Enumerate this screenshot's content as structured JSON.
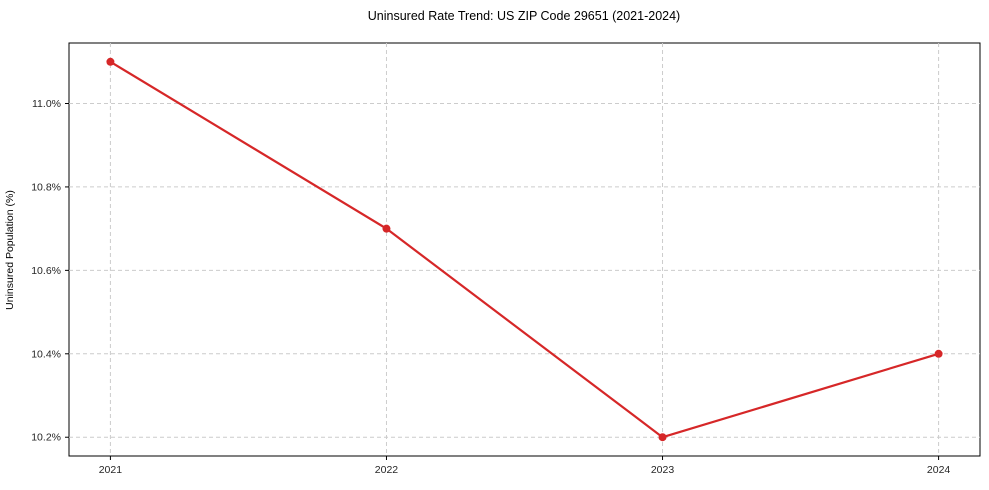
{
  "chart_data": {
    "type": "line",
    "title": "Uninsured Rate Trend: US ZIP Code 29651 (2021-2024)",
    "xlabel": "",
    "ylabel": "Uninsured Population (%)",
    "x": [
      2021,
      2022,
      2023,
      2024
    ],
    "x_tick_labels": [
      "2021",
      "2022",
      "2023",
      "2024"
    ],
    "series": [
      {
        "name": "Uninsured rate",
        "values": [
          11.1,
          10.7,
          10.2,
          10.4
        ],
        "color": "#d62728",
        "marker": "circle"
      }
    ],
    "y_ticks": [
      10.2,
      10.4,
      10.6,
      10.8,
      11.0
    ],
    "y_tick_labels": [
      "10.2%",
      "10.4%",
      "10.6%",
      "10.8%",
      "11.0%"
    ],
    "xlim": [
      2020.85,
      2024.15
    ],
    "ylim": [
      10.155,
      11.145
    ],
    "grid": true,
    "grid_style": "dashed",
    "legend": "none",
    "styles": {
      "line_width": 2.2,
      "marker_radius": 4,
      "grid_color": "#cccccc",
      "grid_dash": "4 3",
      "axis_frame_color": "#000000",
      "tick_color": "#262626",
      "text_color": "#1a1a1a",
      "background": "#ffffff"
    }
  }
}
